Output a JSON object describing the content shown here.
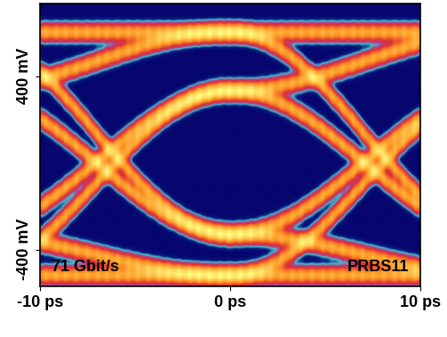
{
  "chart_data": {
    "type": "eye_diagram",
    "annotations": [
      "71 Gbit/s",
      "PRBS11"
    ],
    "bit_period_ps": 14.08,
    "levels": [
      -520,
      -330,
      330,
      600
    ],
    "xlim": [
      -10,
      10
    ],
    "xticks": [
      {
        "value": -10,
        "label": "-10 ps"
      },
      {
        "value": 0,
        "label": "0 ps"
      },
      {
        "value": 10,
        "label": "10 ps"
      }
    ],
    "ylim": [
      -570,
      735
    ],
    "yticks": [
      {
        "value": -400,
        "label": "-400 mV"
      },
      {
        "value": 400,
        "label": "400 mV"
      }
    ]
  }
}
